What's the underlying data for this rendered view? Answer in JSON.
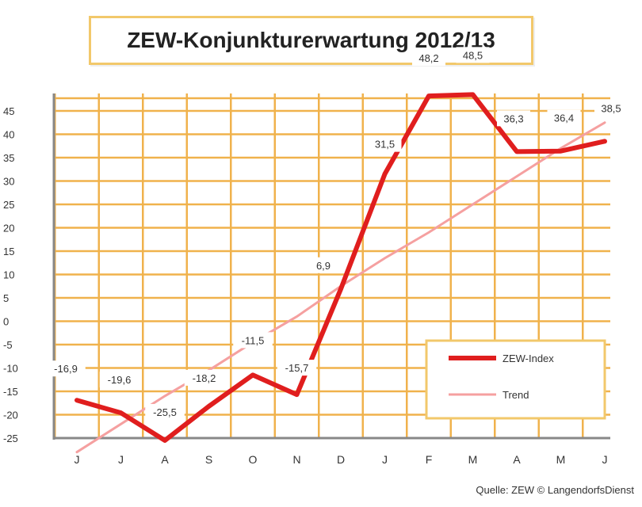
{
  "chart_data": {
    "type": "line",
    "title": "ZEW-Konjunkturerwartung 2012/13",
    "categories": [
      "J",
      "J",
      "A",
      "S",
      "O",
      "N",
      "D",
      "J",
      "F",
      "M",
      "A",
      "M",
      "J"
    ],
    "series": [
      {
        "name": "ZEW-Index",
        "color": "#e01e1e",
        "values": [
          -16.9,
          -19.6,
          -25.5,
          -18.2,
          -11.5,
          -15.7,
          6.9,
          31.5,
          48.2,
          48.5,
          36.3,
          36.4,
          38.5
        ],
        "labels": [
          "-16,9",
          "-19,6",
          "-25,5",
          "-18,2",
          "-11,5",
          "-15,7",
          "6,9",
          "31,5",
          "48,2",
          "48,5",
          "36,3",
          "36,4",
          "38,5"
        ]
      },
      {
        "name": "Trend",
        "color": "#f5a0a0",
        "values": [
          -28,
          -22,
          -16,
          -10.5,
          -4.5,
          1,
          7.5,
          13.5,
          19,
          25,
          31,
          37,
          42.5
        ]
      }
    ],
    "yticks": [
      45,
      40,
      35,
      30,
      25,
      20,
      15,
      10,
      5,
      0,
      -5,
      -10,
      -15,
      -20,
      -25
    ],
    "ylim": [
      -25,
      48
    ],
    "grid": true,
    "legend_position": "bottom-right",
    "source": "Quelle: ZEW © LangendorfsDienst"
  }
}
